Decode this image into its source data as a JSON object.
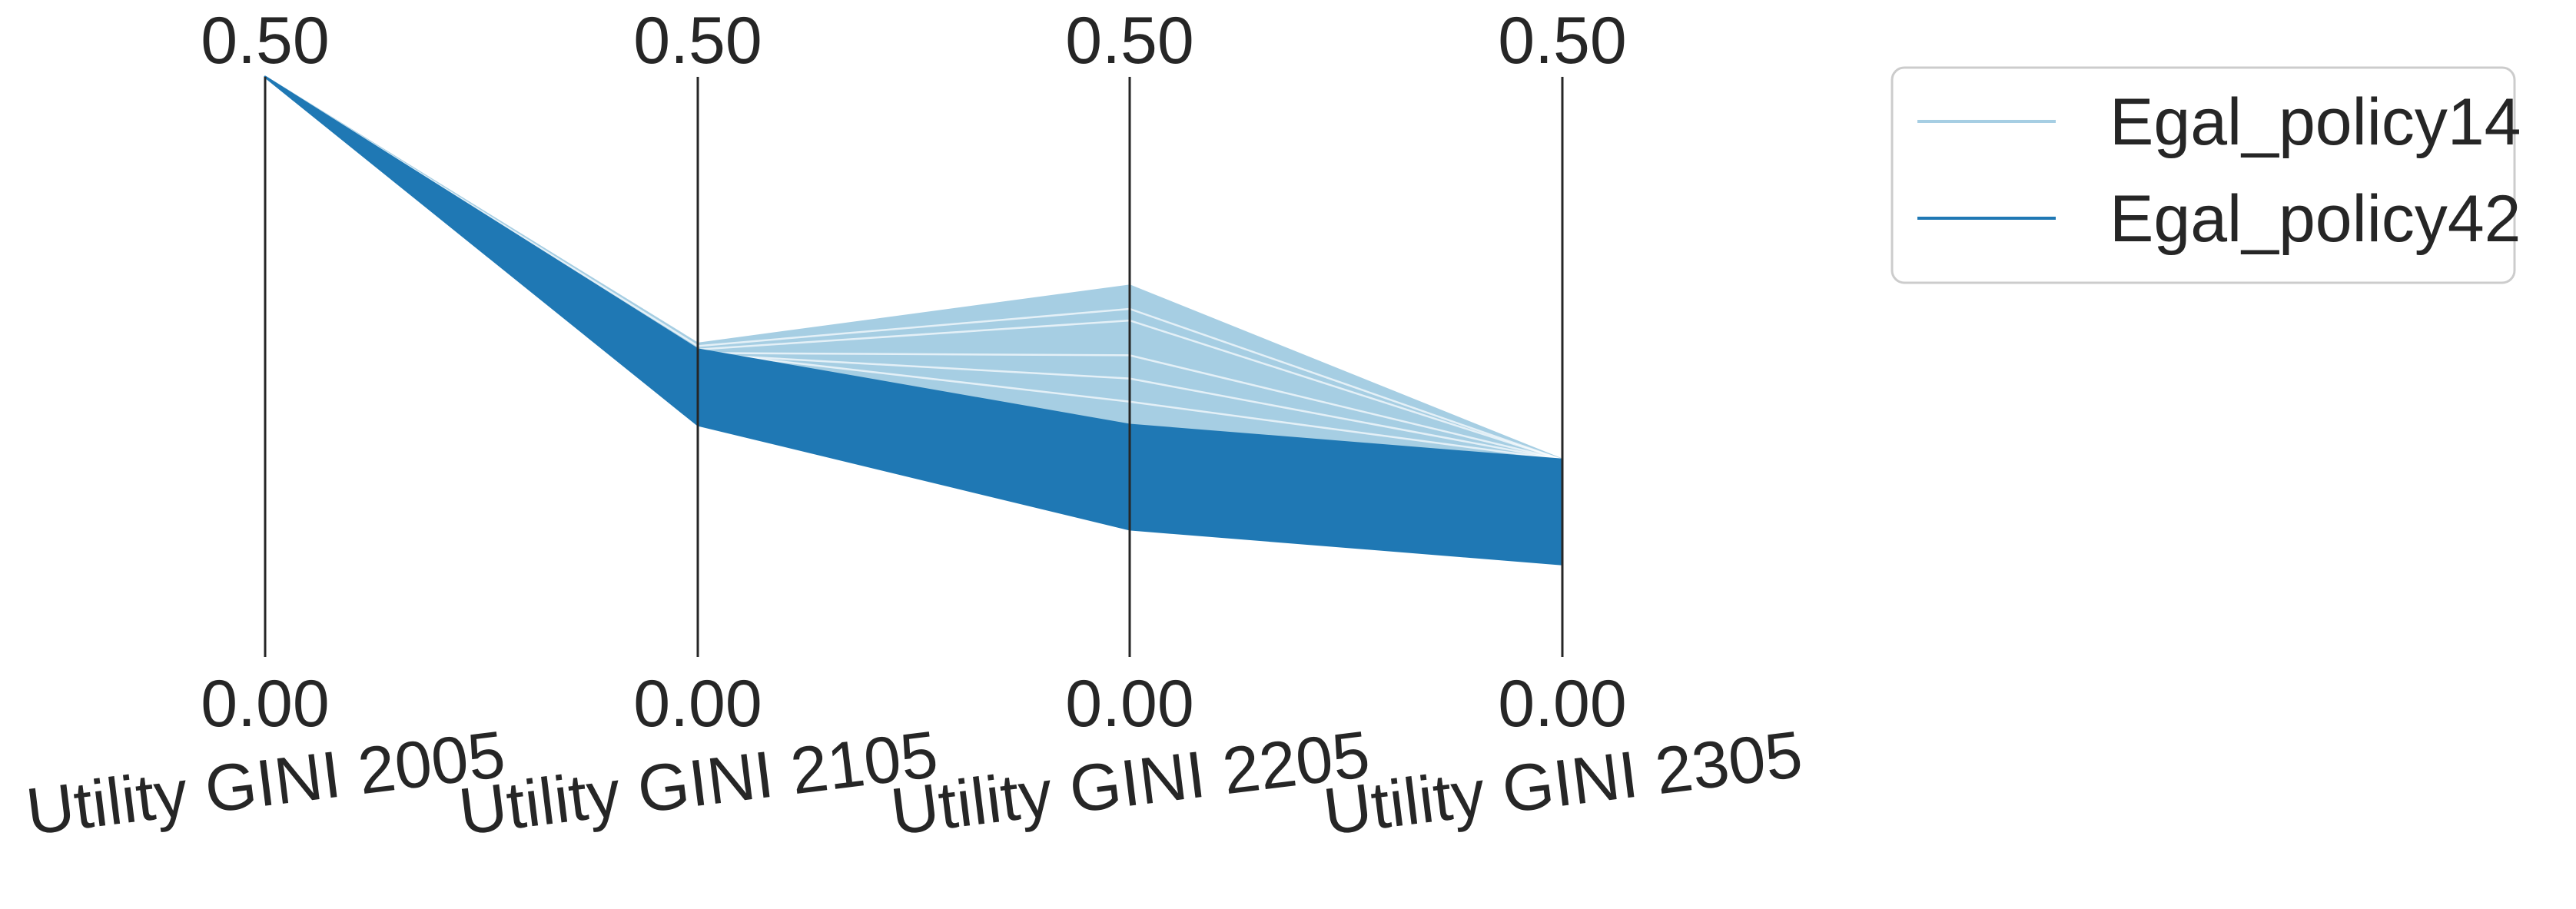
{
  "chart_data": {
    "type": "parallel_coordinates",
    "axes": [
      {
        "label": "Utility GINI 2005",
        "top_tick": "0.50",
        "bottom_tick": "0.00"
      },
      {
        "label": "Utility GINI 2105",
        "top_tick": "0.50",
        "bottom_tick": "0.00"
      },
      {
        "label": "Utility GINI 2205",
        "top_tick": "0.50",
        "bottom_tick": "0.00"
      },
      {
        "label": "Utility GINI 2305",
        "top_tick": "0.50",
        "bottom_tick": "0.00"
      }
    ],
    "ylim": [
      0,
      0.5
    ],
    "grid": false,
    "legend_position": "top-right",
    "series": [
      {
        "name": "Egal_policy14",
        "color": "#a6cee3",
        "upper": [
          0.5,
          0.27,
          0.32,
          0.17
        ],
        "lower": [
          0.5,
          0.26,
          0.19,
          0.17
        ],
        "inner_lines": [
          [
            0.5,
            0.265,
            0.29,
            0.17
          ],
          [
            0.5,
            0.262,
            0.26,
            0.17
          ],
          [
            0.5,
            0.261,
            0.24,
            0.17
          ],
          [
            0.5,
            0.268,
            0.3,
            0.17
          ],
          [
            0.5,
            0.263,
            0.22,
            0.17
          ]
        ]
      },
      {
        "name": "Egal_policy42",
        "color": "#1f78b4",
        "upper": [
          0.5,
          0.265,
          0.2,
          0.17
        ],
        "lower": [
          0.5,
          0.2,
          0.11,
          0.08
        ]
      }
    ]
  }
}
